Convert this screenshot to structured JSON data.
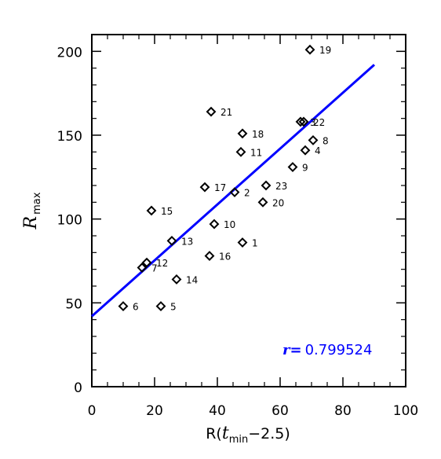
{
  "chart_data": {
    "type": "scatter",
    "title": "",
    "xlabel_parts": {
      "prefix": "R(",
      "t": "t",
      "sub": "min",
      "suffix": "−2.5)"
    },
    "ylabel_parts": {
      "main": "R",
      "sub": "max"
    },
    "xlim": [
      0,
      100
    ],
    "ylim": [
      0,
      210
    ],
    "xticks": [
      0,
      20,
      40,
      60,
      80,
      100
    ],
    "yticks": [
      0,
      50,
      100,
      150,
      200
    ],
    "xtick_labels": [
      "0",
      "20",
      "40",
      "60",
      "80",
      "100"
    ],
    "ytick_labels": [
      "0",
      "50",
      "100",
      "150",
      "200"
    ],
    "grid": false,
    "points": [
      {
        "label": "1",
        "x": 48,
        "y": 86
      },
      {
        "label": "2",
        "x": 45.5,
        "y": 116
      },
      {
        "label": "3",
        "x": 66.5,
        "y": 158
      },
      {
        "label": "4",
        "x": 68,
        "y": 141
      },
      {
        "label": "5",
        "x": 22,
        "y": 48
      },
      {
        "label": "6",
        "x": 10,
        "y": 48
      },
      {
        "label": "7",
        "x": 16,
        "y": 71
      },
      {
        "label": "8",
        "x": 70.5,
        "y": 147
      },
      {
        "label": "9",
        "x": 64,
        "y": 131
      },
      {
        "label": "10",
        "x": 39,
        "y": 97
      },
      {
        "label": "11",
        "x": 47.5,
        "y": 140
      },
      {
        "label": "12",
        "x": 17.5,
        "y": 74
      },
      {
        "label": "13",
        "x": 25.5,
        "y": 87
      },
      {
        "label": "14",
        "x": 27,
        "y": 64
      },
      {
        "label": "15",
        "x": 19,
        "y": 105
      },
      {
        "label": "16",
        "x": 37.5,
        "y": 78
      },
      {
        "label": "17",
        "x": 36,
        "y": 119
      },
      {
        "label": "18",
        "x": 48,
        "y": 151
      },
      {
        "label": "19",
        "x": 69.5,
        "y": 201
      },
      {
        "label": "20",
        "x": 54.5,
        "y": 110
      },
      {
        "label": "21",
        "x": 38,
        "y": 164
      },
      {
        "label": "22",
        "x": 67.5,
        "y": 158
      },
      {
        "label": "23",
        "x": 55.5,
        "y": 120
      }
    ],
    "fit_line": {
      "x": [
        0,
        90
      ],
      "y": [
        42,
        192
      ],
      "color": "#0000ff"
    },
    "correlation": {
      "symbol": "r",
      "equals": "=",
      "value": "0.799524",
      "color": "#0000ff"
    }
  }
}
